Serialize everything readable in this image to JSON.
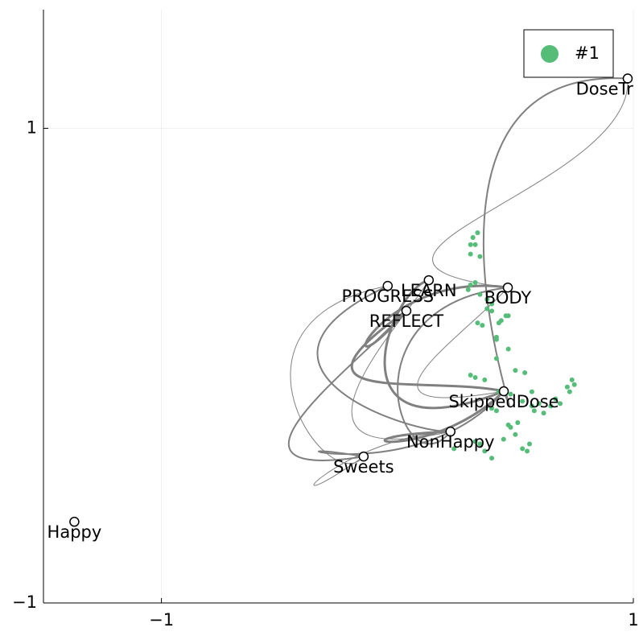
{
  "chart_data": {
    "type": "graph",
    "xlim": [
      -1.5,
      1
    ],
    "ylim": [
      -1,
      1.5
    ],
    "xticks": [
      {
        "value": -1,
        "label": "−1"
      },
      {
        "value": 1,
        "label": "1"
      }
    ],
    "yticks": [
      {
        "value": -1,
        "label": "−1"
      },
      {
        "value": 1,
        "label": "1"
      }
    ],
    "grid": true,
    "legend": "top-right",
    "nodes": [
      {
        "label": "DoseTracker",
        "x": 0.976,
        "y": 1.21
      },
      {
        "label": "BODY",
        "x": 0.468,
        "y": 0.329
      },
      {
        "label": "PROGRESS",
        "x": -0.041,
        "y": 0.336
      },
      {
        "label": "LEARN",
        "x": 0.133,
        "y": 0.36
      },
      {
        "label": "REFLECT",
        "x": 0.038,
        "y": 0.231
      },
      {
        "label": "SkippedDose",
        "x": 0.451,
        "y": -0.108
      },
      {
        "label": "NonHappy",
        "x": 0.225,
        "y": -0.278
      },
      {
        "label": "Sweets",
        "x": -0.143,
        "y": -0.383
      },
      {
        "label": "Happy",
        "x": -1.369,
        "y": -0.658
      }
    ],
    "edges": [
      [
        1,
        5
      ],
      [
        1,
        6
      ],
      [
        5,
        6
      ],
      [
        6,
        7
      ],
      [
        7,
        4
      ],
      [
        4,
        1
      ],
      [
        0,
        1
      ],
      [
        0,
        5
      ],
      [
        3,
        5
      ],
      [
        2,
        7
      ],
      [
        7,
        5
      ],
      [
        4,
        5
      ],
      [
        3,
        6
      ],
      [
        2,
        6
      ]
    ],
    "series": [
      {
        "name": "#1",
        "color": "#55bd78",
        "x": [
          0.34,
          0.32,
          0.31,
          0.33,
          0.31,
          0.35,
          0.31,
          0.33,
          0.3,
          0.35,
          0.38,
          0.4,
          0.38,
          0.4,
          0.46,
          0.47,
          0.44,
          0.43,
          0.34,
          0.36,
          0.42,
          0.42,
          0.47,
          0.42,
          0.5,
          0.54,
          0.31,
          0.33,
          0.37,
          0.74,
          0.75,
          0.72,
          0.73,
          0.43,
          0.48,
          0.57,
          0.4,
          0.42,
          0.53,
          0.57,
          0.58,
          0.6,
          0.62,
          0.67,
          0.69,
          0.65,
          0.47,
          0.48,
          0.51,
          0.45,
          0.5,
          0.56,
          0.53,
          0.55,
          0.33,
          0.35,
          0.37,
          0.4,
          0.24
        ],
        "y": [
          0.56,
          0.54,
          0.51,
          0.51,
          0.47,
          0.46,
          0.34,
          0.35,
          0.32,
          0.3,
          0.28,
          0.26,
          0.24,
          0.23,
          0.21,
          0.21,
          0.19,
          0.18,
          0.18,
          0.17,
          0.12,
          0.11,
          0.07,
          0.03,
          -0.02,
          -0.03,
          -0.04,
          -0.05,
          -0.06,
          -0.06,
          -0.08,
          -0.09,
          -0.11,
          -0.11,
          -0.12,
          -0.11,
          -0.18,
          -0.19,
          -0.15,
          -0.17,
          -0.19,
          -0.16,
          -0.2,
          -0.14,
          -0.16,
          -0.17,
          -0.25,
          -0.26,
          -0.24,
          -0.31,
          -0.29,
          -0.33,
          -0.35,
          -0.36,
          -0.32,
          -0.33,
          -0.36,
          -0.39,
          -0.35
        ]
      }
    ]
  }
}
